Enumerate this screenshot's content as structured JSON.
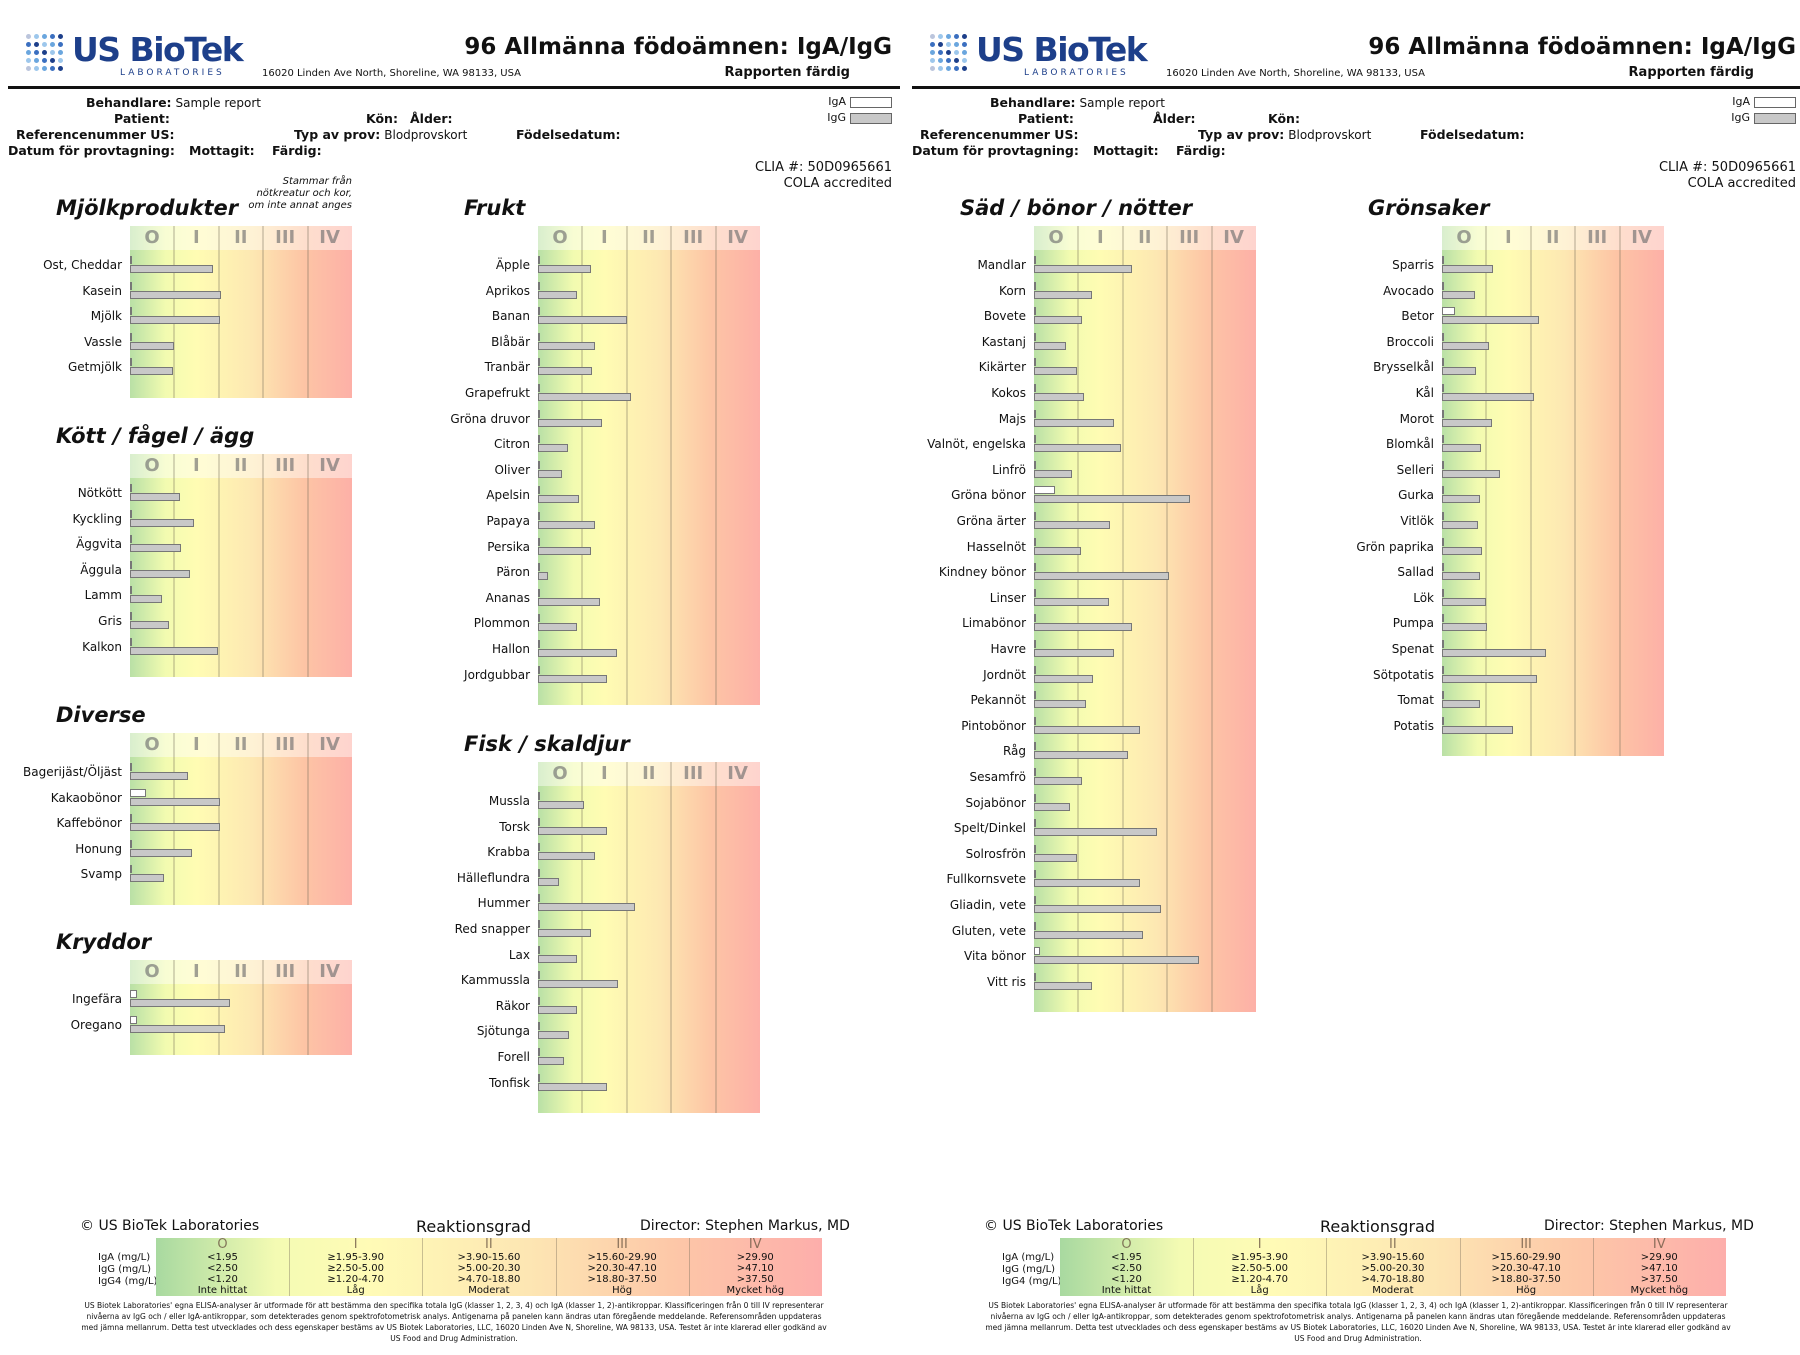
{
  "report": {
    "brand_name": "US BioTek",
    "brand_sub": "LABORATORIES",
    "address": "16020 Linden Ave North, Shoreline, WA 98133, USA",
    "title": "96 Allmänna födoämnen: IgA/IgG",
    "status": "Rapporten färdig",
    "provider_label": "Behandlare:",
    "provider_value": "Sample report",
    "patient_label": "Patient:",
    "sex_label": "Kön:",
    "age_label": "Ålder:",
    "ref_label": "Referencenummer US:",
    "sample_type_label": "Typ av prov:",
    "sample_type_value": "Blodprovskort",
    "dob_label": "Födelsedatum:",
    "collected_label": "Datum för provtagning:",
    "received_label": "Mottagit:",
    "completed_label": "Färdig:",
    "legend_iga": "IgA",
    "legend_igg": "IgG",
    "clia": "CLIA #: 50D0965661",
    "cola": "COLA accredited"
  },
  "colors": {
    "brand": "#1d3f8a",
    "iga_bar": "#ffffff",
    "igg_bar": "#c8c8c8"
  },
  "class_labels": [
    "O",
    "I",
    "II",
    "III",
    "IV"
  ],
  "sections": [
    {
      "key": "dairy",
      "title": "Mjölkprodukter",
      "note": [
        "Stammar från",
        "nötkreatur och kor,",
        "om inte annat anges"
      ],
      "items": [
        {
          "name": "Ost, Cheddar",
          "iga": 0.03,
          "igg": 1.88
        },
        {
          "name": "Kasein",
          "iga": 0.03,
          "igg": 2.05
        },
        {
          "name": "Mjölk",
          "iga": 0.03,
          "igg": 2.02
        },
        {
          "name": "Vassle",
          "iga": 0.03,
          "igg": 1.0
        },
        {
          "name": "Getmjölk",
          "iga": 0.03,
          "igg": 0.97
        }
      ]
    },
    {
      "key": "meat",
      "title": "Kött / fågel / ägg",
      "items": [
        {
          "name": "Nötkött",
          "iga": 0.03,
          "igg": 1.13
        },
        {
          "name": "Kyckling",
          "iga": 0.03,
          "igg": 1.45
        },
        {
          "name": "Äggvita",
          "iga": 0.03,
          "igg": 1.15
        },
        {
          "name": "Äggula",
          "iga": 0.03,
          "igg": 1.35
        },
        {
          "name": "Lamm",
          "iga": 0.03,
          "igg": 0.72
        },
        {
          "name": "Gris",
          "iga": 0.03,
          "igg": 0.87
        },
        {
          "name": "Kalkon",
          "iga": 0.03,
          "igg": 1.98
        }
      ]
    },
    {
      "key": "misc",
      "title": "Diverse",
      "items": [
        {
          "name": "Bagerijäst/Öljäst",
          "iga": 0.03,
          "igg": 1.3
        },
        {
          "name": "Kakaobönor",
          "iga": 0.35,
          "igg": 2.02
        },
        {
          "name": "Kaffebönor",
          "iga": 0.03,
          "igg": 2.02
        },
        {
          "name": "Honung",
          "iga": 0.03,
          "igg": 1.4
        },
        {
          "name": "Svamp",
          "iga": 0.03,
          "igg": 0.77
        }
      ]
    },
    {
      "key": "spices",
      "title": "Kryddor",
      "items": [
        {
          "name": "Ingefära",
          "iga": 0.15,
          "igg": 2.25
        },
        {
          "name": "Oregano",
          "iga": 0.15,
          "igg": 2.15
        }
      ]
    },
    {
      "key": "fruit",
      "title": "Frukt",
      "items": [
        {
          "name": "Äpple",
          "iga": 0.03,
          "igg": 1.2
        },
        {
          "name": "Aprikos",
          "iga": 0.03,
          "igg": 0.87
        },
        {
          "name": "Banan",
          "iga": 0.03,
          "igg": 2.0
        },
        {
          "name": "Blåbär",
          "iga": 0.03,
          "igg": 1.28
        },
        {
          "name": "Tranbär",
          "iga": 0.03,
          "igg": 1.22
        },
        {
          "name": "Grapefrukt",
          "iga": 0.03,
          "igg": 2.1
        },
        {
          "name": "Gröna druvor",
          "iga": 0.03,
          "igg": 1.45
        },
        {
          "name": "Citron",
          "iga": 0.03,
          "igg": 0.67
        },
        {
          "name": "Oliver",
          "iga": 0.03,
          "igg": 0.55
        },
        {
          "name": "Apelsin",
          "iga": 0.03,
          "igg": 0.92
        },
        {
          "name": "Papaya",
          "iga": 0.03,
          "igg": 1.28
        },
        {
          "name": "Persika",
          "iga": 0.03,
          "igg": 1.2
        },
        {
          "name": "Päron",
          "iga": 0.03,
          "igg": 0.23
        },
        {
          "name": "Ananas",
          "iga": 0.03,
          "igg": 1.4
        },
        {
          "name": "Plommon",
          "iga": 0.03,
          "igg": 0.87
        },
        {
          "name": "Hallon",
          "iga": 0.03,
          "igg": 1.78
        },
        {
          "name": "Jordgubbar",
          "iga": 0.03,
          "igg": 1.56
        }
      ]
    },
    {
      "key": "fish",
      "title": "Fisk / skaldjur",
      "items": [
        {
          "name": "Mussla",
          "iga": 0.03,
          "igg": 1.03
        },
        {
          "name": "Torsk",
          "iga": 0.03,
          "igg": 1.56
        },
        {
          "name": "Krabba",
          "iga": 0.03,
          "igg": 1.28
        },
        {
          "name": "Hälleflundra",
          "iga": 0.03,
          "igg": 0.48
        },
        {
          "name": "Hummer",
          "iga": 0.03,
          "igg": 2.18
        },
        {
          "name": "Red snapper",
          "iga": 0.03,
          "igg": 1.2
        },
        {
          "name": "Lax",
          "iga": 0.03,
          "igg": 0.87
        },
        {
          "name": "Kammussla",
          "iga": 0.03,
          "igg": 1.8
        },
        {
          "name": "Räkor",
          "iga": 0.03,
          "igg": 0.88
        },
        {
          "name": "Sjötunga",
          "iga": 0.03,
          "igg": 0.7
        },
        {
          "name": "Forell",
          "iga": 0.03,
          "igg": 0.58
        },
        {
          "name": "Tonfisk",
          "iga": 0.03,
          "igg": 1.56
        }
      ]
    },
    {
      "key": "grains",
      "title": "Säd / bönor / nötter",
      "items": [
        {
          "name": "Mandlar",
          "iga": 0.03,
          "igg": 2.2
        },
        {
          "name": "Korn",
          "iga": 0.03,
          "igg": 1.3
        },
        {
          "name": "Bovete",
          "iga": 0.03,
          "igg": 1.07
        },
        {
          "name": "Kastanj",
          "iga": 0.03,
          "igg": 0.73
        },
        {
          "name": "Kikärter",
          "iga": 0.03,
          "igg": 0.97
        },
        {
          "name": "Kokos",
          "iga": 0.03,
          "igg": 1.13
        },
        {
          "name": "Majs",
          "iga": 0.03,
          "igg": 1.8
        },
        {
          "name": "Valnöt, engelska",
          "iga": 0.03,
          "igg": 1.97
        },
        {
          "name": "Linfrö",
          "iga": 0.03,
          "igg": 0.85
        },
        {
          "name": "Gröna bönor",
          "iga": 0.48,
          "igg": 3.52
        },
        {
          "name": "Gröna ärter",
          "iga": 0.03,
          "igg": 1.72
        },
        {
          "name": "Hasselnöt",
          "iga": 0.03,
          "igg": 1.05
        },
        {
          "name": "Kindney bönor",
          "iga": 0.03,
          "igg": 3.03
        },
        {
          "name": "Linser",
          "iga": 0.03,
          "igg": 1.7
        },
        {
          "name": "Limabönor",
          "iga": 0.03,
          "igg": 2.2
        },
        {
          "name": "Havre",
          "iga": 0.03,
          "igg": 1.8
        },
        {
          "name": "Jordnöt",
          "iga": 0.03,
          "igg": 1.33
        },
        {
          "name": "Pekannöt",
          "iga": 0.03,
          "igg": 1.18
        },
        {
          "name": "Pintobönor",
          "iga": 0.03,
          "igg": 2.38
        },
        {
          "name": "Råg",
          "iga": 0.03,
          "igg": 2.12
        },
        {
          "name": "Sesamfrö",
          "iga": 0.03,
          "igg": 1.07
        },
        {
          "name": "Sojabönor",
          "iga": 0.03,
          "igg": 0.8
        },
        {
          "name": "Spelt/Dinkel",
          "iga": 0.03,
          "igg": 2.77
        },
        {
          "name": "Solrosfrön",
          "iga": 0.03,
          "igg": 0.97
        },
        {
          "name": "Fullkornsvete",
          "iga": 0.03,
          "igg": 2.38
        },
        {
          "name": "Gliadin, vete",
          "iga": 0.03,
          "igg": 2.85
        },
        {
          "name": "Gluten, vete",
          "iga": 0.03,
          "igg": 2.45
        },
        {
          "name": "Vita bönor",
          "iga": 0.13,
          "igg": 3.72
        },
        {
          "name": "Vitt ris",
          "iga": 0.03,
          "igg": 1.3
        }
      ]
    },
    {
      "key": "veg",
      "title": "Grönsaker",
      "items": [
        {
          "name": "Sparris",
          "iga": 0.03,
          "igg": 1.15
        },
        {
          "name": "Avocado",
          "iga": 0.03,
          "igg": 0.75
        },
        {
          "name": "Betor",
          "iga": 0.3,
          "igg": 2.18
        },
        {
          "name": "Broccoli",
          "iga": 0.03,
          "igg": 1.05
        },
        {
          "name": "Brysselkål",
          "iga": 0.03,
          "igg": 0.77
        },
        {
          "name": "Kål",
          "iga": 0.03,
          "igg": 2.08
        },
        {
          "name": "Morot",
          "iga": 0.03,
          "igg": 1.12
        },
        {
          "name": "Blomkål",
          "iga": 0.03,
          "igg": 0.87
        },
        {
          "name": "Selleri",
          "iga": 0.03,
          "igg": 1.3
        },
        {
          "name": "Gurka",
          "iga": 0.03,
          "igg": 0.85
        },
        {
          "name": "Vitlök",
          "iga": 0.03,
          "igg": 0.8
        },
        {
          "name": "Grön paprika",
          "iga": 0.03,
          "igg": 0.9
        },
        {
          "name": "Sallad",
          "iga": 0.03,
          "igg": 0.85
        },
        {
          "name": "Lök",
          "iga": 0.03,
          "igg": 0.98
        },
        {
          "name": "Pumpa",
          "iga": 0.03,
          "igg": 1.02
        },
        {
          "name": "Spenat",
          "iga": 0.03,
          "igg": 2.35
        },
        {
          "name": "Sötpotatis",
          "iga": 0.03,
          "igg": 2.15
        },
        {
          "name": "Tomat",
          "iga": 0.03,
          "igg": 0.85
        },
        {
          "name": "Potatis",
          "iga": 0.03,
          "igg": 1.6
        }
      ]
    }
  ],
  "footer": {
    "copyright": "© US BioTek Laboratories",
    "title": "Reaktionsgrad",
    "director": "Director: Stephen Markus, MD",
    "units": [
      "IgA   (mg/L)",
      "IgG   (mg/L)",
      "IgG4  (mg/L)"
    ],
    "classes": [
      {
        "roman": "O",
        "iga": "<1.95",
        "igg": "<2.50",
        "igg4": "<1.20",
        "label": "Inte hittat"
      },
      {
        "roman": "I",
        "iga": "≥1.95-3.90",
        "igg": "≥2.50-5.00",
        "igg4": "≥1.20-4.70",
        "label": "Låg"
      },
      {
        "roman": "II",
        "iga": ">3.90-15.60",
        "igg": ">5.00-20.30",
        "igg4": ">4.70-18.80",
        "label": "Moderat"
      },
      {
        "roman": "III",
        "iga": ">15.60-29.90",
        "igg": ">20.30-47.10",
        "igg4": ">18.80-37.50",
        "label": "Hög"
      },
      {
        "roman": "IV",
        "iga": ">29.90",
        "igg": ">47.10",
        "igg4": ">37.50",
        "label": "Mycket hög"
      }
    ],
    "disclaimer": "US Biotek Laboratories' egna ELISA-analyser är utformade för att bestämma den specifika totala IgG (klasser 1, 2, 3, 4) och IgA (klasser 1, 2)-antikroppar. Klassificeringen från 0 till IV representerar nivåerna av IgG och / eller IgA-antikroppar, som detekterades genom spektrofotometrisk analys. Antigenarna på panelen kann ändras utan föregående meddelande. Referensområden uppdateras med jämna mellanrum. Detta test utvecklades och dess egenskaper bestäms av US Biotek Laboratories, LLC, 16020 Linden Ave N, Shoreline, WA 98133, USA. Testet är inte klarerad eller godkänd av US Food and Drug Administration."
  }
}
